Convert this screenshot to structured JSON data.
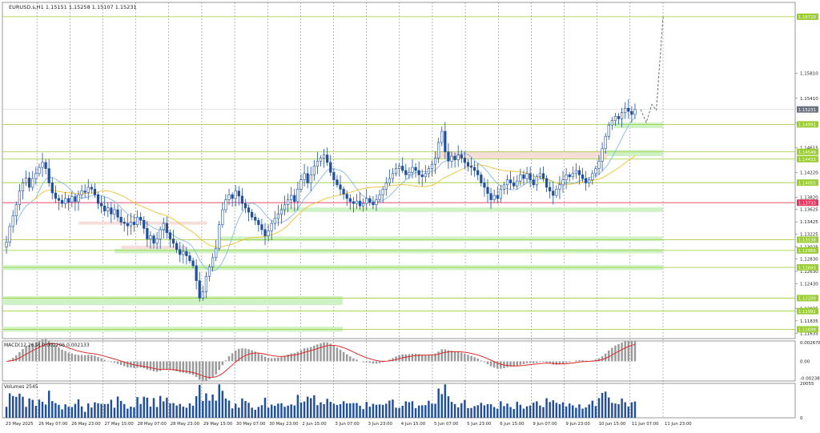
{
  "header": {
    "symbol_info": "EURUSD.s,H1   1.15151 1.15258 1.15107 1.15231"
  },
  "chart_data": [
    {
      "type": "candlestick",
      "title": "EURUSD.s,H1",
      "ohlc_last": {
        "open": 1.15151,
        "high": 1.15258,
        "low": 1.15107,
        "close": 1.15231
      },
      "ylim": [
        1.1155,
        1.1695
      ],
      "y_ticks": [
        "1.15810",
        "1.15410",
        "1.15010",
        "1.14615",
        "1.14220",
        "1.13820",
        "1.13625",
        "1.13425",
        "1.13225",
        "1.13025",
        "1.12830",
        "1.12630",
        "1.12430",
        "1.12035",
        "1.11835",
        "1.11635"
      ],
      "price_tags": [
        {
          "label": "1.16720",
          "value": 1.1672,
          "color": "#9acd32"
        },
        {
          "label": "1.15231",
          "value": 1.15231,
          "color": "#6b7280"
        },
        {
          "label": "1.14991",
          "value": 1.14991,
          "color": "#9acd32"
        },
        {
          "label": "1.14549",
          "value": 1.14549,
          "color": "#9acd32"
        },
        {
          "label": "1.14433",
          "value": 1.14433,
          "color": "#9acd32"
        },
        {
          "label": "1.14055",
          "value": 1.14055,
          "color": "#9acd32"
        },
        {
          "label": "1.13733",
          "value": 1.13733,
          "color": "#e8335d"
        },
        {
          "label": "1.13138",
          "value": 1.13138,
          "color": "#9acd32"
        },
        {
          "label": "1.12966",
          "value": 1.12966,
          "color": "#9acd32"
        },
        {
          "label": "1.12693",
          "value": 1.12693,
          "color": "#9acd32"
        },
        {
          "label": "1.12200",
          "value": 1.122,
          "color": "#9acd32"
        },
        {
          "label": "1.11991",
          "value": 1.11991,
          "color": "#9acd32"
        },
        {
          "label": "1.11698",
          "value": 1.11698,
          "color": "#9acd32"
        }
      ],
      "support_zones": [
        {
          "low": 1.13585,
          "high": 1.13655,
          "x_start": 0.42,
          "x_end": 1.0
        },
        {
          "low": 1.1312,
          "high": 1.1319,
          "x_start": 0.33,
          "x_end": 1.0
        },
        {
          "low": 1.1292,
          "high": 1.1299,
          "x_start": 0.17,
          "x_end": 1.0
        },
        {
          "low": 1.1265,
          "high": 1.1273,
          "x_start": 0.0,
          "x_end": 1.0
        },
        {
          "low": 1.1209,
          "high": 1.1223,
          "x_start": 0.0,
          "x_end": 0.515
        },
        {
          "low": 1.1166,
          "high": 1.1174,
          "x_start": 0.0,
          "x_end": 0.515
        },
        {
          "low": 1.1448,
          "high": 1.1458,
          "x_start": 0.915,
          "x_end": 1.0
        },
        {
          "low": 1.1493,
          "high": 1.1502,
          "x_start": 0.925,
          "x_end": 1.0
        }
      ],
      "resistance_zones": [
        {
          "low": 1.1444,
          "high": 1.1456,
          "x_start": 0.655,
          "x_end": 0.915
        },
        {
          "low": 1.1338,
          "high": 1.1343,
          "x_start": 0.115,
          "x_end": 0.31
        },
        {
          "low": 1.1299,
          "high": 1.1304,
          "x_start": 0.18,
          "x_end": 0.28
        }
      ],
      "forecast_path": [
        [
          1.15231,
          0.0
        ],
        [
          1.1502,
          0.25
        ],
        [
          1.1531,
          0.5
        ],
        [
          1.1522,
          0.7
        ],
        [
          1.1672,
          1.0
        ]
      ],
      "close_series": [
        1.131,
        1.1335,
        1.1352,
        1.137,
        1.1392,
        1.1405,
        1.1413,
        1.1398,
        1.1412,
        1.142,
        1.143,
        1.1438,
        1.1428,
        1.1405,
        1.1389,
        1.138,
        1.1377,
        1.1372,
        1.138,
        1.1374,
        1.1383,
        1.1375,
        1.1386,
        1.1392,
        1.139,
        1.1398,
        1.1395,
        1.1386,
        1.1372,
        1.1368,
        1.136,
        1.1365,
        1.1355,
        1.1362,
        1.135,
        1.1342,
        1.134,
        1.1336,
        1.1342,
        1.1338,
        1.135,
        1.1345,
        1.1332,
        1.1315,
        1.132,
        1.1308,
        1.1315,
        1.133,
        1.134,
        1.1325,
        1.1315,
        1.1308,
        1.1298,
        1.129,
        1.1295,
        1.1288,
        1.128,
        1.1272,
        1.1248,
        1.122,
        1.123,
        1.1255,
        1.127,
        1.1285,
        1.13,
        1.1338,
        1.1362,
        1.1378,
        1.1386,
        1.138,
        1.1392,
        1.1384,
        1.1372,
        1.1365,
        1.1358,
        1.135,
        1.1345,
        1.1338,
        1.133,
        1.132,
        1.1328,
        1.134,
        1.1348,
        1.1355,
        1.1362,
        1.137,
        1.1378,
        1.1385,
        1.1375,
        1.1395,
        1.141,
        1.142,
        1.1405,
        1.1418,
        1.1432,
        1.144,
        1.1445,
        1.145,
        1.1438,
        1.1422,
        1.141,
        1.1402,
        1.1395,
        1.1387,
        1.138,
        1.1375,
        1.1372,
        1.1376,
        1.1368,
        1.1372,
        1.138,
        1.1374,
        1.137,
        1.1378,
        1.1386,
        1.1395,
        1.1405,
        1.1412,
        1.142,
        1.1428,
        1.1432,
        1.1425,
        1.1418,
        1.1422,
        1.143,
        1.1425,
        1.1418,
        1.1415,
        1.142,
        1.1428,
        1.1435,
        1.1445,
        1.147,
        1.1488,
        1.1455,
        1.144,
        1.1448,
        1.1442,
        1.145,
        1.1445,
        1.1438,
        1.1432,
        1.143,
        1.1425,
        1.1418,
        1.1405,
        1.1398,
        1.1388,
        1.1378,
        1.1385,
        1.138,
        1.1395,
        1.1402,
        1.141,
        1.1405,
        1.14,
        1.1408,
        1.1418,
        1.1412,
        1.142,
        1.141,
        1.1402,
        1.1415,
        1.142,
        1.1412,
        1.1398,
        1.1392,
        1.1385,
        1.1395,
        1.1402,
        1.141,
        1.1418,
        1.1415,
        1.142,
        1.1425,
        1.1418,
        1.1412,
        1.1405,
        1.141,
        1.142,
        1.1428,
        1.144,
        1.146,
        1.148,
        1.1498,
        1.1505,
        1.1512,
        1.1508,
        1.1518,
        1.1525,
        1.152,
        1.1515,
        1.1523
      ]
    },
    {
      "type": "line",
      "title": "MACD(12,26,9) 0.002206 0.002133",
      "ylim": [
        -0.0028,
        0.0029
      ],
      "y_ticks": [
        "0.002678",
        "0.00",
        "-0.002389"
      ]
    },
    {
      "type": "bar",
      "title": "Volumes 2545",
      "ylim": [
        0,
        20055
      ],
      "y_ticks": [
        "20055",
        "0"
      ]
    }
  ],
  "x_axis": {
    "labels": [
      "23 May 2025",
      "26 May 07:00",
      "26 May 23:00",
      "27 May 15:00",
      "28 May 07:00",
      "28 May 23:00",
      "29 May 15:00",
      "30 May 07:00",
      "30 May 23:00",
      "2 Jun 15:00",
      "3 Jun 07:00",
      "3 Jun 23:00",
      "4 Jun 15:00",
      "5 Jun 07:00",
      "5 Jun 23:00",
      "6 Jun 15:00",
      "9 Jun 07:00",
      "9 Jun 23:00",
      "10 Jun 15:00",
      "11 Jun 07:00",
      "11 Jun 23:00"
    ]
  },
  "colors": {
    "bull": "#1f4f9e",
    "bear": "#1f4f9e",
    "ma_fast": "#87b9e6",
    "ma_slow": "#f2c232",
    "macd_signal": "#e0191a",
    "macd_hist": "#9a9a9a",
    "volume": "#1f4f9e",
    "level_line": "#9acd32",
    "red_level": "#e8335d",
    "zone_green": "#cff2c4",
    "zone_red": "#f6ddd7",
    "grid": "#707070"
  }
}
